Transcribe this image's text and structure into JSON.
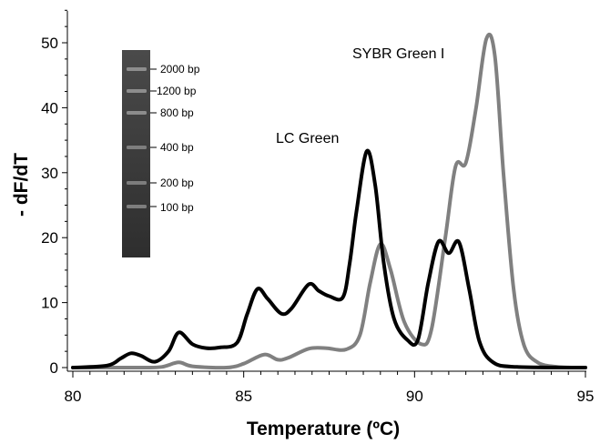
{
  "chart_data": {
    "type": "line",
    "title": "",
    "xlabel": "Temperature (ºC)",
    "ylabel": "- dF/dT",
    "xlim": [
      80,
      95
    ],
    "ylim": [
      -1,
      55
    ],
    "xticks": [
      80,
      85,
      90,
      95
    ],
    "yticks": [
      0,
      10,
      20,
      30,
      40,
      50
    ],
    "grid": false,
    "series": [
      {
        "name": "LC Green",
        "color": "#000000",
        "points": [
          [
            80.0,
            0.0
          ],
          [
            81.0,
            0.3
          ],
          [
            81.4,
            1.4
          ],
          [
            81.7,
            2.2
          ],
          [
            82.0,
            1.8
          ],
          [
            82.4,
            0.9
          ],
          [
            82.8,
            2.5
          ],
          [
            83.1,
            5.4
          ],
          [
            83.5,
            3.6
          ],
          [
            83.9,
            3.0
          ],
          [
            84.3,
            3.1
          ],
          [
            84.8,
            3.8
          ],
          [
            85.1,
            8.2
          ],
          [
            85.4,
            12.1
          ],
          [
            85.7,
            10.6
          ],
          [
            86.1,
            8.3
          ],
          [
            86.4,
            9.1
          ],
          [
            86.9,
            12.8
          ],
          [
            87.2,
            11.8
          ],
          [
            87.5,
            11.0
          ],
          [
            87.9,
            10.8
          ],
          [
            88.1,
            16.0
          ],
          [
            88.3,
            24.0
          ],
          [
            88.6,
            33.3
          ],
          [
            88.85,
            28.0
          ],
          [
            89.1,
            16.0
          ],
          [
            89.4,
            7.5
          ],
          [
            89.8,
            4.2
          ],
          [
            90.1,
            4.3
          ],
          [
            90.4,
            13.0
          ],
          [
            90.7,
            19.4
          ],
          [
            91.0,
            17.6
          ],
          [
            91.3,
            19.3
          ],
          [
            91.6,
            12.0
          ],
          [
            91.9,
            4.0
          ],
          [
            92.3,
            0.8
          ],
          [
            93.0,
            0.1
          ],
          [
            95.0,
            0.0
          ]
        ]
      },
      {
        "name": "SYBR Green I",
        "color": "#808080",
        "points": [
          [
            80.0,
            0.0
          ],
          [
            82.0,
            0.0
          ],
          [
            82.6,
            0.1
          ],
          [
            83.1,
            0.8
          ],
          [
            83.5,
            0.2
          ],
          [
            84.5,
            0.0
          ],
          [
            85.0,
            0.6
          ],
          [
            85.6,
            2.0
          ],
          [
            86.0,
            1.2
          ],
          [
            86.3,
            1.5
          ],
          [
            86.9,
            2.9
          ],
          [
            87.4,
            3.0
          ],
          [
            88.0,
            2.8
          ],
          [
            88.4,
            5.0
          ],
          [
            88.7,
            13.0
          ],
          [
            89.0,
            19.0
          ],
          [
            89.3,
            15.0
          ],
          [
            89.7,
            7.0
          ],
          [
            90.2,
            3.6
          ],
          [
            90.5,
            6.0
          ],
          [
            90.9,
            20.0
          ],
          [
            91.2,
            31.0
          ],
          [
            91.5,
            31.5
          ],
          [
            91.8,
            40.0
          ],
          [
            92.1,
            50.6
          ],
          [
            92.35,
            48.0
          ],
          [
            92.6,
            30.0
          ],
          [
            92.9,
            12.0
          ],
          [
            93.2,
            3.5
          ],
          [
            93.6,
            0.8
          ],
          [
            94.2,
            0.1
          ],
          [
            95.0,
            0.0
          ]
        ]
      }
    ],
    "annotations": {
      "lc_green": "LC Green",
      "sybr": "SYBR Green I"
    },
    "gel_ladder": {
      "labels": [
        "2000 bp",
        "1200 bp",
        "800 bp",
        "400 bp",
        "200 bp",
        "100 bp"
      ]
    }
  }
}
